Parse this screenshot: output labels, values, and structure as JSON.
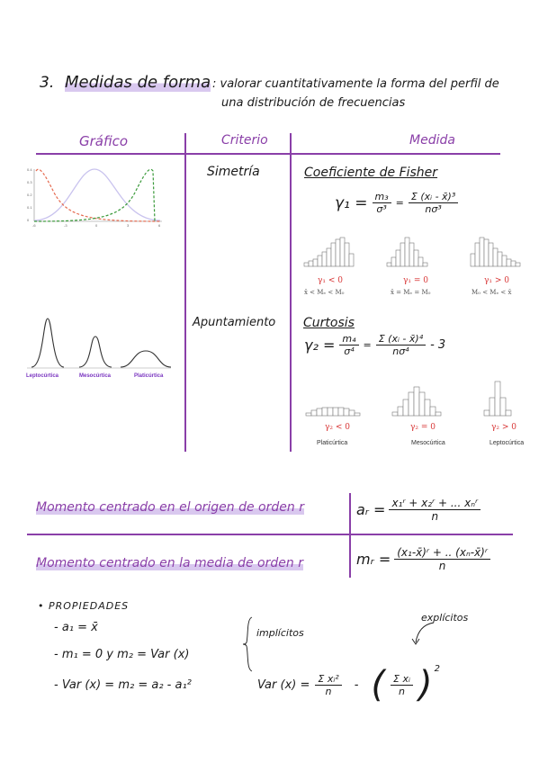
{
  "header": {
    "number": "3.",
    "title": "Medidas de forma",
    "description_line1": ": valorar cuantitativamente la forma del perfil de",
    "description_line2": "una distribución de frecuencias"
  },
  "table": {
    "columns": [
      "Gráfico",
      "Criterio",
      "Medida"
    ],
    "rows": [
      {
        "criterio": "Simetría",
        "medida_title": "Coeficiente de Fisher",
        "formula_lhs": "γ₁ =",
        "formula_frac1_num": "m₃",
        "formula_frac1_den": "σ³",
        "formula_eq": "=",
        "formula_frac2_num": "Σ (xᵢ - x̄)³",
        "formula_frac2_den": "nσ³",
        "cases": [
          {
            "label": "γ₁ < 0",
            "relation": "x̄ < Mₑ < M₀"
          },
          {
            "label": "γ₁ = 0",
            "relation": "x̄ = Mₑ = M₀"
          },
          {
            "label": "γ₁ > 0",
            "relation": "M₀ < Mₑ < x̄"
          }
        ]
      },
      {
        "criterio": "Apuntamiento",
        "medida_title": "Curtosis",
        "formula_lhs": "γ₂ =",
        "formula_frac1_num": "m₄",
        "formula_frac1_den": "σ⁴",
        "formula_eq": "=",
        "formula_frac2_num": "Σ (xᵢ - x̄)⁴",
        "formula_frac2_den": "nσ⁴",
        "formula_tail": "- 3",
        "cases": [
          {
            "label": "γ₂ < 0",
            "name": "Platicúrtica"
          },
          {
            "label": "γ₂ = 0",
            "name": "Mesocúrtica"
          },
          {
            "label": "γ₂ > 0",
            "name": "Leptocúrtica"
          }
        ],
        "curve_labels": [
          "Leptocúrtica",
          "Mesocúrtica",
          "Platicúrtica"
        ]
      }
    ],
    "chart_ticks_y": [
      "0.4",
      "0.3",
      "0.2",
      "0.1",
      "0"
    ],
    "chart_ticks_x": [
      "-6",
      "-3",
      "0",
      "3",
      "6"
    ]
  },
  "moments": [
    {
      "label": "Momento centrado en el origen de orden r",
      "symbol": "aᵣ =",
      "num": "x₁ʳ + x₂ʳ + ... xₙʳ",
      "den": "n"
    },
    {
      "label": "Momento centrado en la media de orden r",
      "symbol": "mᵣ =",
      "num": "(x₁-x̄)ʳ + .. (xₙ-x̄)ʳ",
      "den": "n"
    }
  ],
  "properties": {
    "title": "• PROPIEDADES",
    "items": [
      "- a₁ = x̄",
      "- m₁ = 0   y   m₂ = Var (x)",
      "- Var (x) = m₂ = a₂ - a₁²"
    ],
    "implicitos": "implícitos",
    "explicitos": "explícitos",
    "var_lhs": "Var (x) =",
    "var_frac1_num": "Σ xᵢ²",
    "var_frac1_den": "n",
    "var_minus": "-",
    "var_frac2_num": "Σ xᵢ",
    "var_frac2_den": "n",
    "var_power": "2"
  },
  "colors": {
    "accent": "#8a3fa8",
    "highlight": "#d9c8ef",
    "red": "#d93a3a",
    "green": "#3a9a3a",
    "lavender": "#c9c3ee"
  }
}
